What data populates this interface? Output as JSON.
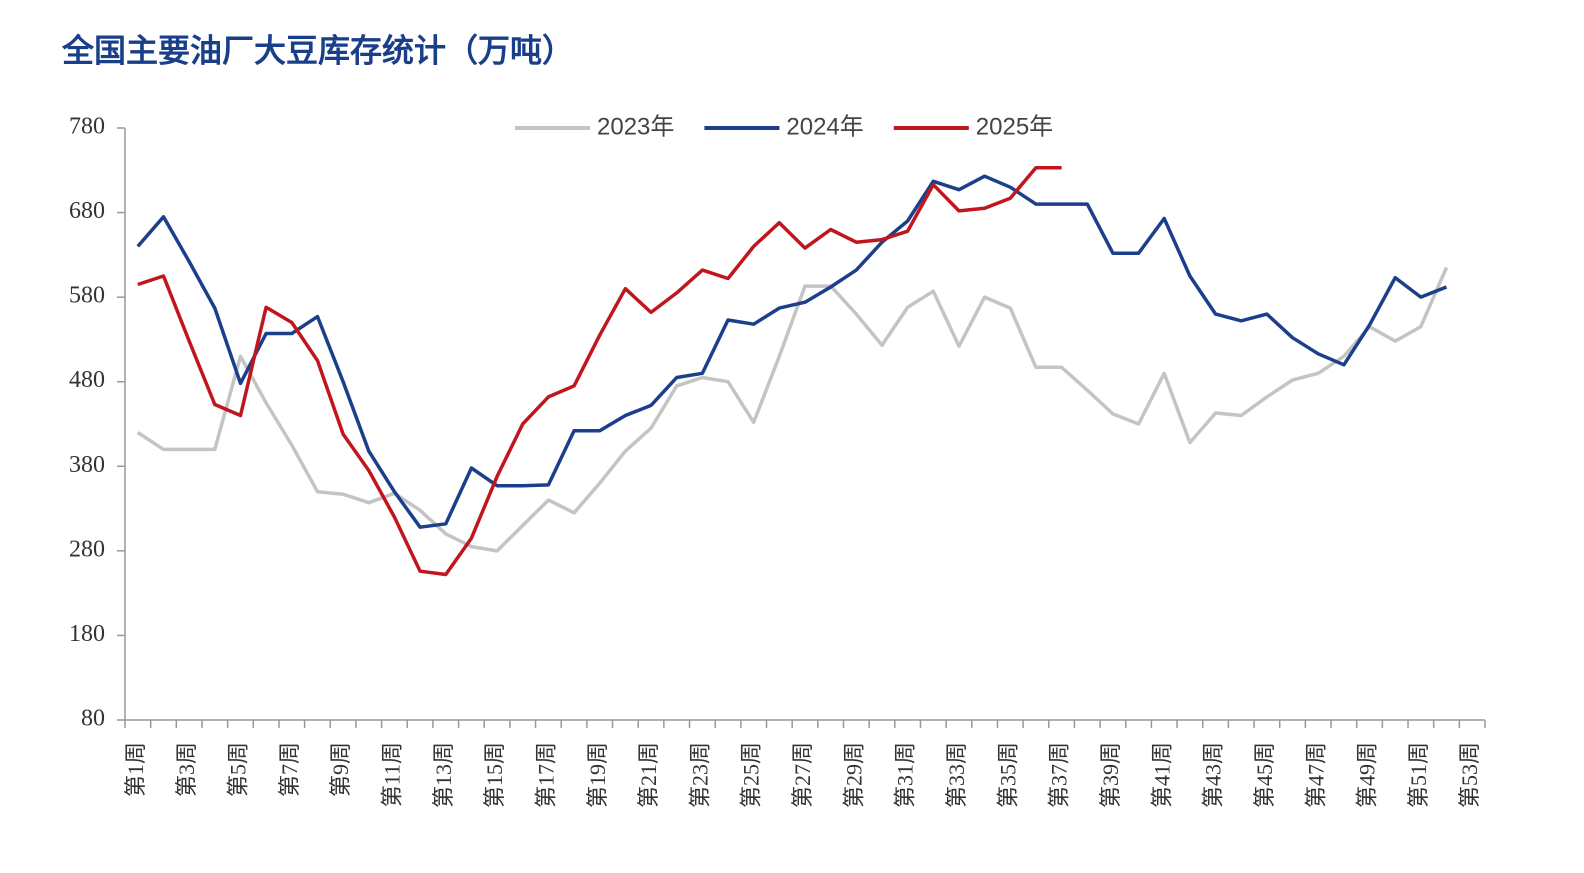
{
  "chart_data": {
    "type": "line",
    "title": "全国主要油厂大豆库存统计（万吨）",
    "categories": [
      "第1周",
      null,
      "第3周",
      null,
      "第5周",
      null,
      "第7周",
      null,
      "第9周",
      null,
      "第11周",
      null,
      "第13周",
      null,
      "第15周",
      null,
      "第17周",
      null,
      "第19周",
      null,
      "第21周",
      null,
      "第23周",
      null,
      "第25周",
      null,
      "第27周",
      null,
      "第29周",
      null,
      "第31周",
      null,
      "第33周",
      null,
      "第35周",
      null,
      "第37周",
      null,
      "第39周",
      null,
      "第41周",
      null,
      "第43周",
      null,
      "第45周",
      null,
      "第47周",
      null,
      "第49周",
      null,
      "第51周",
      null,
      "第53周"
    ],
    "series": [
      {
        "name": "2023年",
        "color": "#c4c4c4",
        "values": [
          420,
          400,
          400,
          400,
          510,
          455,
          405,
          350,
          347,
          337,
          348,
          328,
          300,
          285,
          280,
          310,
          340,
          325,
          360,
          398,
          425,
          475,
          485,
          480,
          432,
          510,
          593,
          593,
          560,
          523,
          568,
          587,
          522,
          580,
          567,
          497,
          497,
          470,
          442,
          430,
          490,
          408,
          443,
          440,
          462,
          482,
          490,
          510,
          545,
          528,
          545,
          615,
          null
        ]
      },
      {
        "name": "2024年",
        "color": "#1c3f8c",
        "values": [
          640,
          675,
          622,
          567,
          478,
          537,
          537,
          557,
          480,
          398,
          350,
          308,
          312,
          378,
          357,
          357,
          358,
          422,
          422,
          440,
          452,
          485,
          490,
          553,
          548,
          567,
          574,
          592,
          612,
          645,
          670,
          717,
          707,
          723,
          710,
          690,
          690,
          690,
          632,
          632,
          673,
          605,
          560,
          552,
          560,
          532,
          513,
          500,
          547,
          603,
          580,
          592,
          null
        ]
      },
      {
        "name": "2025年",
        "color": "#c0161e",
        "values": [
          595,
          605,
          528,
          453,
          440,
          568,
          550,
          505,
          418,
          375,
          320,
          256,
          252,
          295,
          368,
          430,
          462,
          475,
          535,
          590,
          562,
          585,
          612,
          602,
          640,
          668,
          638,
          660,
          645,
          648,
          658,
          713,
          682,
          685,
          697,
          733,
          733,
          null,
          null,
          null,
          null,
          null,
          null,
          null,
          null,
          null,
          null,
          null,
          null,
          null,
          null,
          null,
          null
        ]
      }
    ],
    "ylim": [
      80,
      780
    ],
    "yticks": [
      80,
      180,
      280,
      380,
      480,
      580,
      680,
      780
    ],
    "legend": "top"
  }
}
